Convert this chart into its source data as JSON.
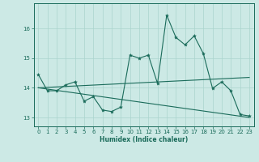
{
  "xlabel": "Humidex (Indice chaleur)",
  "bg_color": "#cce9e5",
  "line_color": "#1a6b5a",
  "grid_color": "#aad4ce",
  "xlim": [
    -0.5,
    23.5
  ],
  "ylim": [
    12.7,
    16.85
  ],
  "yticks": [
    13,
    14,
    15,
    16
  ],
  "xticks": [
    0,
    1,
    2,
    3,
    4,
    5,
    6,
    7,
    8,
    9,
    10,
    11,
    12,
    13,
    14,
    15,
    16,
    17,
    18,
    19,
    20,
    21,
    22,
    23
  ],
  "series1_x": [
    0,
    1,
    2,
    3,
    4,
    5,
    6,
    7,
    8,
    9,
    10,
    11,
    12,
    13,
    14,
    15,
    16,
    17,
    18,
    19,
    20,
    21,
    22,
    23
  ],
  "series1_y": [
    14.45,
    13.9,
    13.9,
    14.1,
    14.2,
    13.55,
    13.7,
    13.25,
    13.2,
    13.35,
    15.1,
    15.0,
    15.1,
    14.15,
    16.45,
    15.7,
    15.45,
    15.75,
    15.15,
    13.98,
    14.2,
    13.9,
    13.1,
    13.05
  ],
  "series2_x": [
    0,
    23
  ],
  "series2_y": [
    14.0,
    14.35
  ],
  "series3_x": [
    0,
    23
  ],
  "series3_y": [
    14.0,
    13.0
  ]
}
